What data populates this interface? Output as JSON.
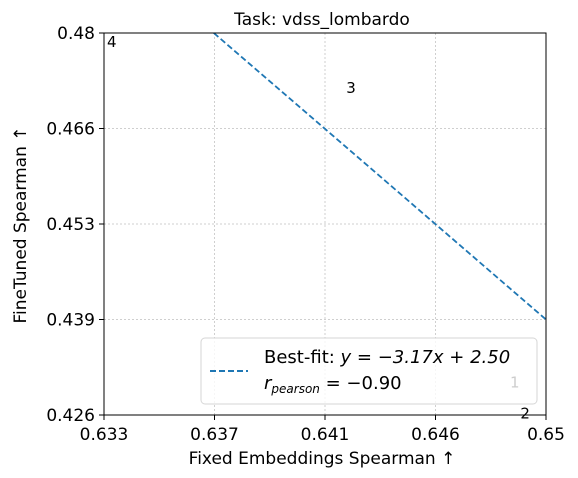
{
  "chart_data": {
    "type": "scatter",
    "title": "Task: vdss_lombardo",
    "xlabel": "Fixed Embeddings Spearman ↑",
    "ylabel": "FineTuned Spearman ↑",
    "xlim": [
      0.633,
      0.65
    ],
    "ylim": [
      0.426,
      0.48
    ],
    "x_ticks": [
      "0.633",
      "0.637",
      "0.641",
      "0.646",
      "0.65"
    ],
    "y_ticks": [
      "0.426",
      "0.439",
      "0.453",
      "0.466",
      "0.48"
    ],
    "grid": true,
    "points": [
      {
        "label": "1",
        "x": 0.6488,
        "y": 0.4306,
        "color": "#ffffff"
      },
      {
        "label": "2",
        "x": 0.6492,
        "y": 0.4262,
        "color": "#000000"
      },
      {
        "label": "3",
        "x": 0.6425,
        "y": 0.4722,
        "color": "#000000"
      },
      {
        "label": "4",
        "x": 0.6333,
        "y": 0.4787,
        "color": "#000000"
      }
    ],
    "fit": {
      "slope": -3.17,
      "intercept": 2.5,
      "color": "#1f77b4"
    },
    "legend": {
      "position": "lower-right",
      "line1_prefix": "Best-fit: ",
      "line1_math": "y = −3.17x + 2.50",
      "line2_r": "r",
      "line2_sub": "pearson",
      "line2_rest": " = −0.90"
    }
  }
}
